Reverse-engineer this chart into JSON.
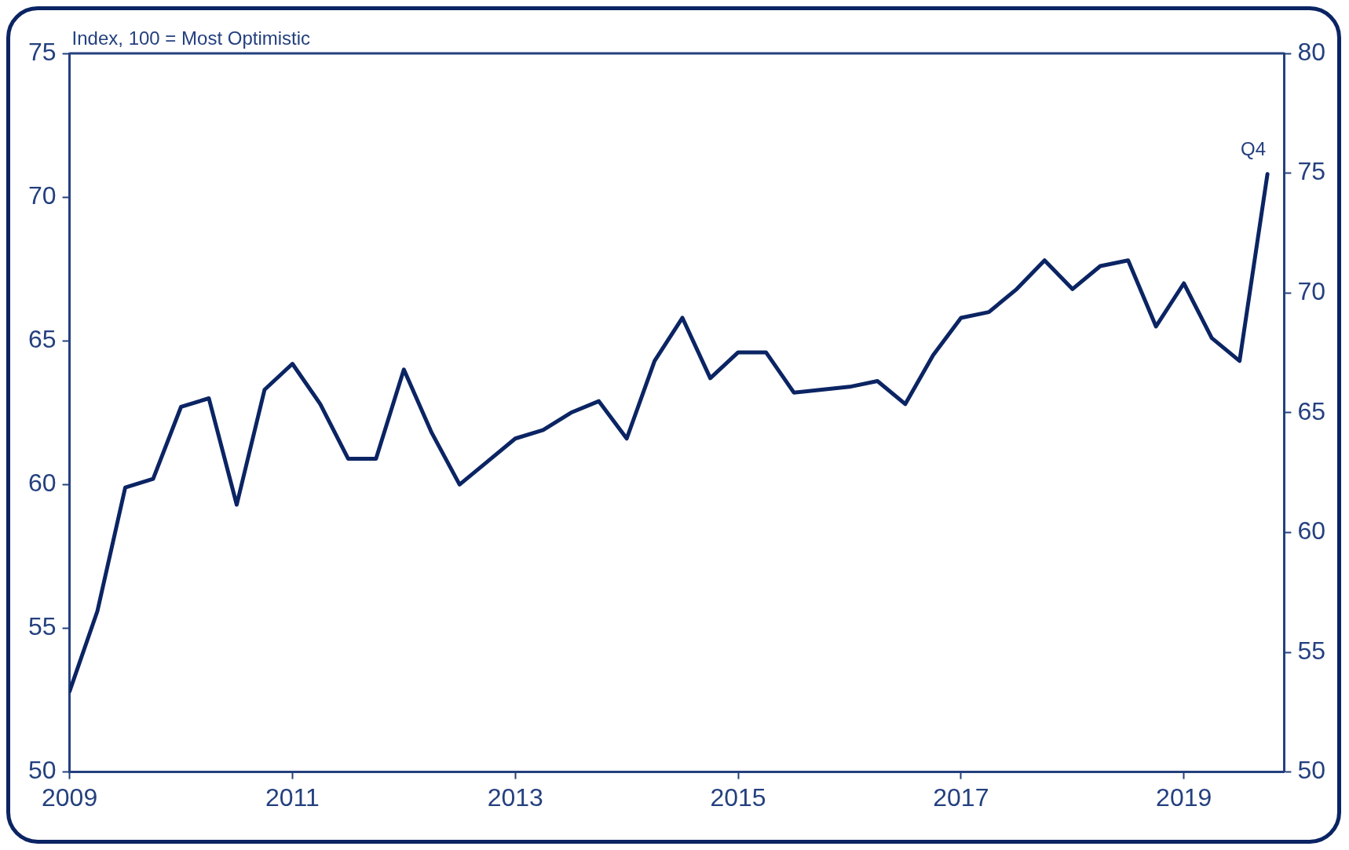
{
  "chart_data": {
    "type": "line",
    "ylabel": "Index, 100 = Most Optimistic",
    "x": [
      2009,
      2009.25,
      2009.5,
      2009.75,
      2010,
      2010.25,
      2010.5,
      2010.75,
      2011,
      2011.25,
      2011.5,
      2011.75,
      2012,
      2012.25,
      2012.5,
      2012.75,
      2013,
      2013.25,
      2013.5,
      2013.75,
      2014,
      2014.25,
      2014.5,
      2014.75,
      2015,
      2015.25,
      2015.5,
      2015.75,
      2016,
      2016.25,
      2016.5,
      2016.75,
      2017,
      2017.25,
      2017.5,
      2017.75,
      2018,
      2018.25,
      2018.5,
      2018.75,
      2019,
      2019.25,
      2019.5,
      2019.75
    ],
    "series": [
      {
        "color": "#0b2463",
        "values": [
          52.8,
          55.6,
          59.9,
          60.2,
          62.7,
          63.0,
          59.3,
          63.3,
          64.2,
          62.8,
          60.9,
          60.9,
          64.0,
          61.8,
          60.0,
          60.8,
          61.6,
          61.9,
          62.5,
          62.9,
          61.6,
          64.3,
          65.8,
          63.7,
          64.6,
          64.6,
          63.2,
          63.3,
          63.4,
          63.6,
          62.8,
          64.5,
          65.8,
          66.0,
          66.8,
          67.8,
          66.8,
          67.6,
          67.8,
          65.5,
          67.0,
          65.1,
          64.3,
          70.8
        ]
      }
    ],
    "marker": "none",
    "line_style": "solid",
    "xlim": [
      2009,
      2019.9
    ],
    "xticks": [
      2009,
      2011,
      2013,
      2015,
      2017,
      2019
    ],
    "ylim": [
      50,
      75
    ],
    "yticks": [
      50,
      55,
      60,
      65,
      70,
      75
    ],
    "y2lim": [
      50,
      80
    ],
    "y2ticks": [
      50,
      55,
      60,
      65,
      70,
      75,
      80
    ],
    "annotations": [
      {
        "text": "Q4",
        "x": 2019.75,
        "y": 70.8
      }
    ]
  }
}
